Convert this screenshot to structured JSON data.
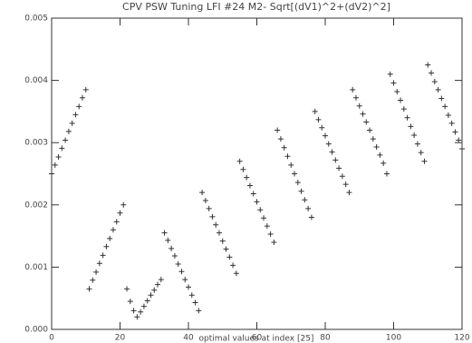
{
  "chart_data": {
    "type": "scatter",
    "title": "CPV PSW Tuning LFI #24 M2- Sqrt[(dV1)^2+(dV2)^2]",
    "x_label": "optimal values at index [25]",
    "marker": "+",
    "color": "#333333",
    "x": [
      0,
      1,
      2,
      3,
      4,
      5,
      6,
      7,
      8,
      9,
      10,
      11,
      12,
      13,
      14,
      15,
      16,
      17,
      18,
      19,
      20,
      21,
      22,
      23,
      24,
      25,
      26,
      27,
      28,
      29,
      30,
      31,
      32,
      33,
      34,
      35,
      36,
      37,
      38,
      39,
      40,
      41,
      42,
      43,
      44,
      45,
      46,
      47,
      48,
      49,
      50,
      51,
      52,
      53,
      54,
      55,
      56,
      57,
      58,
      59,
      60,
      61,
      62,
      63,
      64,
      65,
      66,
      67,
      68,
      69,
      70,
      71,
      72,
      73,
      74,
      75,
      76,
      77,
      78,
      79,
      80,
      81,
      82,
      83,
      84,
      85,
      86,
      87,
      88,
      89,
      90,
      91,
      92,
      93,
      94,
      95,
      96,
      97,
      98,
      99,
      100,
      101,
      102,
      103,
      104,
      105,
      106,
      107,
      108,
      109,
      110,
      111,
      112,
      113,
      114,
      115,
      116,
      117,
      118,
      119,
      120
    ],
    "values": [
      0.0025,
      0.00264,
      0.00277,
      0.00291,
      0.00304,
      0.00318,
      0.00331,
      0.00345,
      0.00358,
      0.00372,
      0.00385,
      0.00065,
      0.00079,
      0.00092,
      0.00106,
      0.00119,
      0.00133,
      0.00146,
      0.0016,
      0.00173,
      0.00187,
      0.002,
      0.00065,
      0.00045,
      0.0003,
      0.0002,
      0.00028,
      0.00037,
      0.00046,
      0.00055,
      0.00063,
      0.00072,
      0.0008,
      0.00155,
      0.00143,
      0.0013,
      0.00118,
      0.00105,
      0.00093,
      0.0008,
      0.00068,
      0.00055,
      0.00043,
      0.0003,
      0.0022,
      0.00207,
      0.00194,
      0.00181,
      0.00168,
      0.00155,
      0.00142,
      0.00129,
      0.00116,
      0.00103,
      0.0009,
      0.0027,
      0.00257,
      0.00244,
      0.00231,
      0.00218,
      0.00205,
      0.00192,
      0.00179,
      0.00166,
      0.00153,
      0.0014,
      0.0032,
      0.00306,
      0.00292,
      0.00278,
      0.00264,
      0.0025,
      0.00236,
      0.00222,
      0.00208,
      0.00194,
      0.0018,
      0.0035,
      0.00337,
      0.00324,
      0.00311,
      0.00298,
      0.00285,
      0.00272,
      0.00259,
      0.00246,
      0.00233,
      0.0022,
      0.00385,
      0.00372,
      0.00359,
      0.00346,
      0.00333,
      0.0032,
      0.00306,
      0.00293,
      0.0028,
      0.00267,
      0.0025,
      0.0041,
      0.00396,
      0.00382,
      0.00368,
      0.00354,
      0.0034,
      0.00326,
      0.00312,
      0.00298,
      0.00284,
      0.0027,
      0.00425,
      0.00412,
      0.00398,
      0.00385,
      0.00371,
      0.00358,
      0.00344,
      0.00331,
      0.00317,
      0.00304,
      0.0029
    ],
    "xlim": [
      0,
      120
    ],
    "xticks": [
      0,
      20,
      40,
      60,
      80,
      100,
      120
    ],
    "ylim": [
      0,
      0.005
    ],
    "yticks": [
      {
        "value": 0,
        "label": "0.000"
      },
      {
        "value": 0.001,
        "label": "0.001"
      },
      {
        "value": 0.002,
        "label": "0.002"
      },
      {
        "value": 0.003,
        "label": "0.003"
      },
      {
        "value": 0.004,
        "label": "0.004"
      },
      {
        "value": 0.005,
        "label": "0.005"
      }
    ],
    "grid": false
  }
}
